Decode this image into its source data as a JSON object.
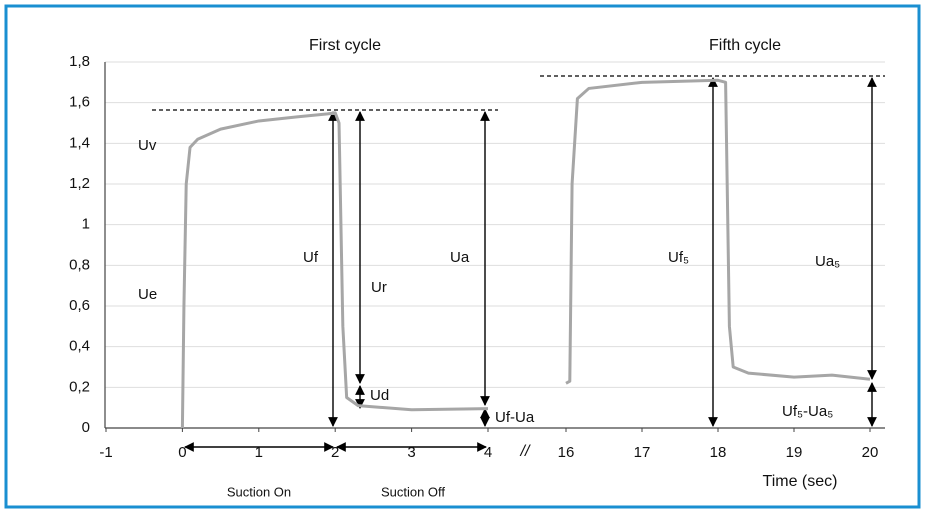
{
  "chart_data": {
    "type": "line",
    "ylim": [
      0,
      1.8
    ],
    "yticks": [
      0,
      {
        "value": 0.2,
        "label": "0,2"
      },
      {
        "value": 0.4,
        "label": "0,4"
      },
      {
        "value": 0.6,
        "label": "0,6"
      },
      {
        "value": 0.8,
        "label": "0,8"
      },
      1,
      {
        "value": 1.2,
        "label": "1,2"
      },
      {
        "value": 1.4,
        "label": "1,4"
      },
      {
        "value": 1.6,
        "label": "1,6"
      },
      {
        "value": 1.8,
        "label": "1,8"
      }
    ],
    "x_segments": [
      {
        "xlim": [
          -1,
          4
        ],
        "xticks": [
          -1,
          0,
          1,
          2,
          3,
          4
        ]
      },
      {
        "xlim": [
          16,
          20
        ],
        "xticks": [
          16,
          17,
          18,
          19,
          20
        ]
      }
    ],
    "grid": true,
    "x_label": "Time (sec)",
    "series": [
      {
        "name": "First cycle",
        "color": "#a6a6a6",
        "segment": 0,
        "x": [
          0,
          0.02,
          0.05,
          0.1,
          0.2,
          0.5,
          1,
          1.5,
          1.9,
          2.0,
          2.05,
          2.1,
          2.15,
          2.3,
          3,
          4
        ],
        "values": [
          0,
          0.6,
          1.2,
          1.38,
          1.42,
          1.47,
          1.51,
          1.53,
          1.545,
          1.55,
          1.5,
          0.5,
          0.15,
          0.11,
          0.09,
          0.095
        ]
      },
      {
        "name": "Fifth cycle",
        "color": "#a6a6a6",
        "segment": 1,
        "x": [
          16,
          16.05,
          16.08,
          16.15,
          16.3,
          17,
          18,
          18.1,
          18.15,
          18.2,
          18.4,
          19,
          19.5,
          20
        ],
        "values": [
          0.22,
          0.23,
          1.2,
          1.62,
          1.67,
          1.7,
          1.71,
          1.7,
          0.5,
          0.3,
          0.27,
          0.25,
          0.26,
          0.24
        ]
      }
    ],
    "annotations": {
      "uv": "Uv",
      "ue": "Ue",
      "uf": "Uf",
      "ur": "Ur",
      "ud": "Ud",
      "ua": "Ua",
      "uf_ua": "Uf-Ua",
      "uf5": "Uf₅",
      "ua5": "Ua₅",
      "uf5_ua5": "Uf₅-Ua₅",
      "suction_on": "Suction On",
      "suction_off": "Suction Off",
      "axis_break": "//"
    }
  }
}
